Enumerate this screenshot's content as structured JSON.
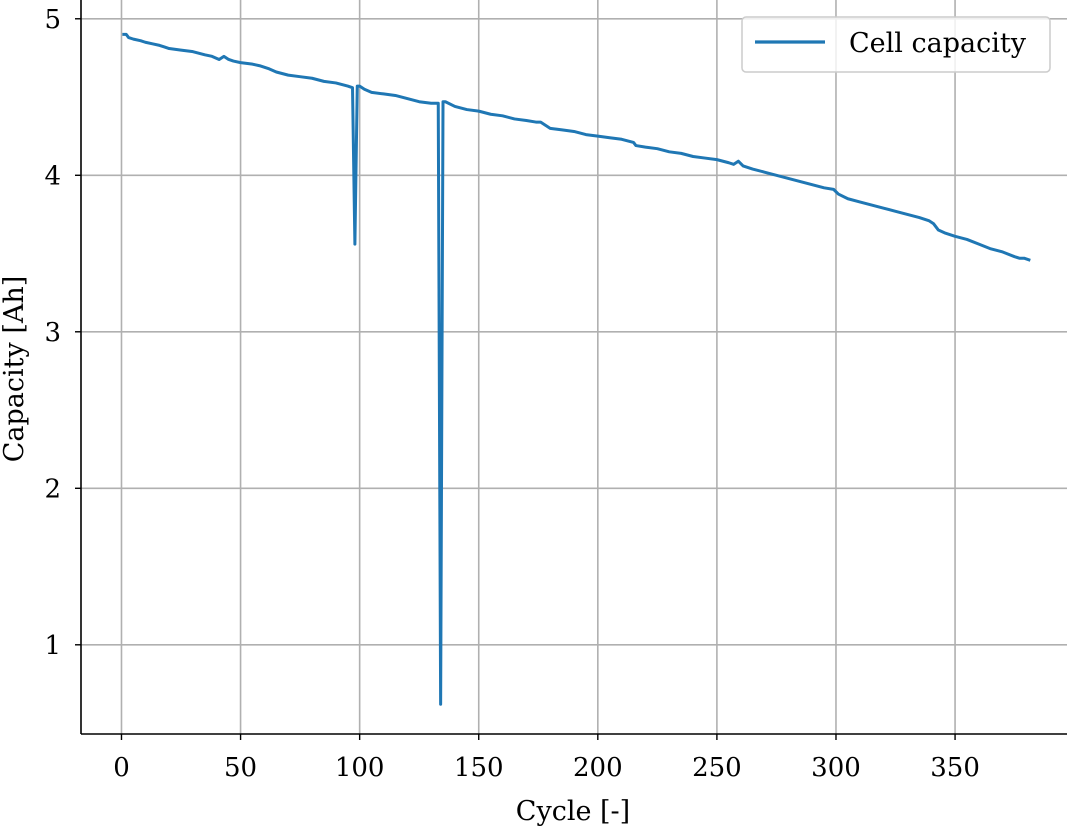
{
  "chart_data": {
    "type": "line",
    "title": "",
    "xlabel": "Cycle [-]",
    "ylabel": "Capacity [Ah]",
    "xlim": [
      -17,
      397
    ],
    "ylim": [
      0.43,
      5.12
    ],
    "xticks": [
      0,
      50,
      100,
      150,
      200,
      250,
      300,
      350
    ],
    "yticks": [
      1,
      2,
      3,
      4,
      5
    ],
    "grid": true,
    "legend_position": "top-right",
    "series": [
      {
        "name": "Cell capacity",
        "color": "#1f77b4",
        "points": [
          [
            1,
            4.9
          ],
          [
            2,
            4.9
          ],
          [
            3,
            4.88
          ],
          [
            5,
            4.87
          ],
          [
            8,
            4.86
          ],
          [
            10,
            4.85
          ],
          [
            13,
            4.84
          ],
          [
            16,
            4.83
          ],
          [
            18,
            4.82
          ],
          [
            20,
            4.81
          ],
          [
            25,
            4.8
          ],
          [
            30,
            4.79
          ],
          [
            35,
            4.77
          ],
          [
            38,
            4.76
          ],
          [
            41,
            4.74
          ],
          [
            43,
            4.76
          ],
          [
            45,
            4.74
          ],
          [
            47,
            4.73
          ],
          [
            50,
            4.72
          ],
          [
            55,
            4.71
          ],
          [
            58,
            4.7
          ],
          [
            62,
            4.68
          ],
          [
            65,
            4.66
          ],
          [
            70,
            4.64
          ],
          [
            75,
            4.63
          ],
          [
            80,
            4.62
          ],
          [
            85,
            4.6
          ],
          [
            90,
            4.59
          ],
          [
            95,
            4.57
          ],
          [
            97,
            4.56
          ],
          [
            98,
            3.56
          ],
          [
            99,
            4.57
          ],
          [
            100,
            4.57
          ],
          [
            102,
            4.55
          ],
          [
            105,
            4.53
          ],
          [
            110,
            4.52
          ],
          [
            115,
            4.51
          ],
          [
            120,
            4.49
          ],
          [
            125,
            4.47
          ],
          [
            130,
            4.46
          ],
          [
            133,
            4.46
          ],
          [
            134,
            0.62
          ],
          [
            135,
            4.47
          ],
          [
            136,
            4.47
          ],
          [
            140,
            4.44
          ],
          [
            145,
            4.42
          ],
          [
            150,
            4.41
          ],
          [
            155,
            4.39
          ],
          [
            160,
            4.38
          ],
          [
            165,
            4.36
          ],
          [
            170,
            4.35
          ],
          [
            174,
            4.34
          ],
          [
            176,
            4.34
          ],
          [
            178,
            4.32
          ],
          [
            180,
            4.3
          ],
          [
            185,
            4.29
          ],
          [
            190,
            4.28
          ],
          [
            195,
            4.26
          ],
          [
            200,
            4.25
          ],
          [
            205,
            4.24
          ],
          [
            210,
            4.23
          ],
          [
            215,
            4.21
          ],
          [
            216,
            4.19
          ],
          [
            220,
            4.18
          ],
          [
            225,
            4.17
          ],
          [
            230,
            4.15
          ],
          [
            235,
            4.14
          ],
          [
            240,
            4.12
          ],
          [
            245,
            4.11
          ],
          [
            250,
            4.1
          ],
          [
            255,
            4.08
          ],
          [
            257,
            4.07
          ],
          [
            259,
            4.09
          ],
          [
            261,
            4.06
          ],
          [
            265,
            4.04
          ],
          [
            270,
            4.02
          ],
          [
            275,
            4.0
          ],
          [
            280,
            3.98
          ],
          [
            285,
            3.96
          ],
          [
            290,
            3.94
          ],
          [
            295,
            3.92
          ],
          [
            299,
            3.91
          ],
          [
            301,
            3.88
          ],
          [
            305,
            3.85
          ],
          [
            310,
            3.83
          ],
          [
            315,
            3.81
          ],
          [
            320,
            3.79
          ],
          [
            325,
            3.77
          ],
          [
            330,
            3.75
          ],
          [
            335,
            3.73
          ],
          [
            339,
            3.71
          ],
          [
            341,
            3.69
          ],
          [
            343,
            3.65
          ],
          [
            346,
            3.63
          ],
          [
            350,
            3.61
          ],
          [
            355,
            3.59
          ],
          [
            360,
            3.56
          ],
          [
            365,
            3.53
          ],
          [
            370,
            3.51
          ],
          [
            375,
            3.48
          ],
          [
            377,
            3.47
          ],
          [
            379,
            3.47
          ],
          [
            381,
            3.46
          ]
        ]
      }
    ]
  }
}
